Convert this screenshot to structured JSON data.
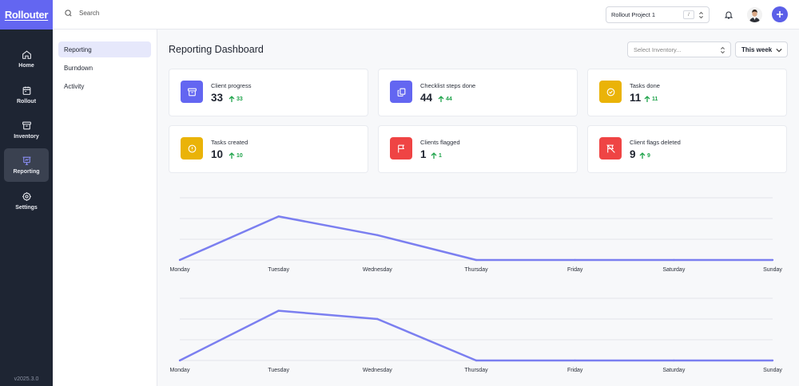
{
  "app": {
    "logo_text": "Rollouter",
    "version": "v2025.3.0"
  },
  "rail": {
    "items": [
      {
        "label": "Home",
        "icon": "home-icon"
      },
      {
        "label": "Rollout",
        "icon": "calendar-icon"
      },
      {
        "label": "Inventory",
        "icon": "archive-icon"
      },
      {
        "label": "Reporting",
        "icon": "presentation-chart-icon",
        "active": true
      },
      {
        "label": "Settings",
        "icon": "gear-icon"
      }
    ]
  },
  "topbar": {
    "search_placeholder": "Search",
    "project": "Rollout Project 1",
    "shortcut": "/"
  },
  "subnav": {
    "items": [
      {
        "label": "Reporting",
        "active": true
      },
      {
        "label": "Burndown"
      },
      {
        "label": "Activity"
      }
    ]
  },
  "main": {
    "title": "Reporting Dashboard",
    "inventory_placeholder": "Select Inventory...",
    "period": "This week"
  },
  "stats": [
    {
      "label": "Client progress",
      "value": "33",
      "delta": "33",
      "icon": "archive-icon",
      "color": "#6366f1"
    },
    {
      "label": "Checklist steps done",
      "value": "44",
      "delta": "44",
      "icon": "copy-icon",
      "color": "#6366f1"
    },
    {
      "label": "Tasks done",
      "value": "11",
      "delta": "11",
      "icon": "check-circle-icon",
      "color": "#eab308"
    },
    {
      "label": "Tasks created",
      "value": "10",
      "delta": "10",
      "icon": "info-circle-icon",
      "color": "#eab308"
    },
    {
      "label": "Clients flagged",
      "value": "1",
      "delta": "1",
      "icon": "flag-icon",
      "color": "#ef4444"
    },
    {
      "label": "Client flags deleted",
      "value": "9",
      "delta": "9",
      "icon": "flag-off-icon",
      "color": "#ef4444"
    }
  ],
  "colors": {
    "accent": "#6366f1",
    "line": "#7b7ff0",
    "positive": "#1ea34a"
  },
  "chart_data": [
    {
      "type": "line",
      "categories": [
        "Monday",
        "Tuesday",
        "Wednesday",
        "Thursday",
        "Friday",
        "Saturday",
        "Sunday"
      ],
      "values": [
        0,
        21,
        12,
        0,
        0,
        0,
        0
      ],
      "ylim": [
        0,
        30
      ],
      "grid": true
    },
    {
      "type": "line",
      "categories": [
        "Monday",
        "Tuesday",
        "Wednesday",
        "Thursday",
        "Friday",
        "Saturday",
        "Sunday"
      ],
      "values": [
        0,
        24,
        20,
        0,
        0,
        0,
        0
      ],
      "ylim": [
        0,
        30
      ],
      "grid": true
    }
  ]
}
